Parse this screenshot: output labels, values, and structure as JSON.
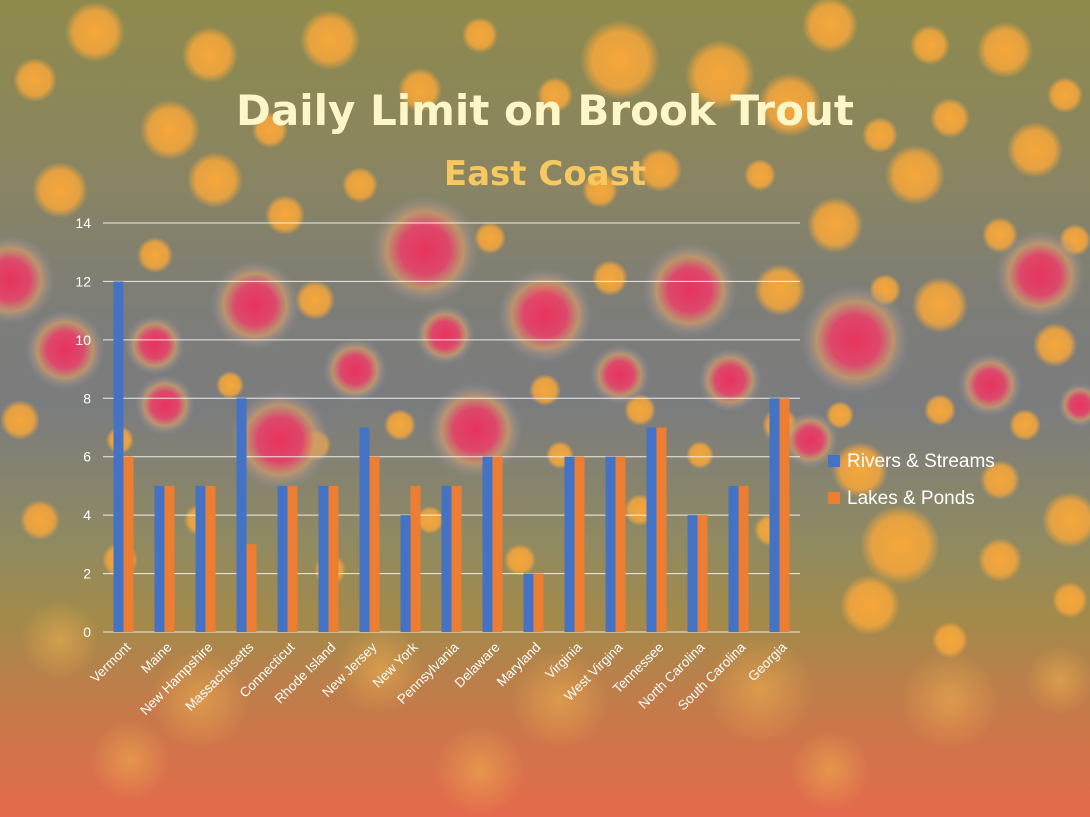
{
  "colors": {
    "rivers": "#4472c4",
    "lakes": "#ed7d31",
    "grid": "#ffffff",
    "spot_gold": "#f6a73a",
    "spot_red": "#e8335e"
  },
  "chart_data": {
    "type": "bar",
    "title": "Daily Limit on Brook Trout",
    "subtitle": "East Coast",
    "categories": [
      "Vermont",
      "Maine",
      "New Hampshire",
      "Massachusetts",
      "Connecticut",
      "Rhode Island",
      "New Jersey",
      "New York",
      "Pennsylvania",
      "Delaware",
      "Maryland",
      "Virginia",
      "West Virgina",
      "Tennessee",
      "North Carolina",
      "South Carolina",
      "Georgia"
    ],
    "series": [
      {
        "name": "Rivers & Streams",
        "values": [
          12,
          5,
          5,
          8,
          5,
          5,
          7,
          4,
          5,
          6,
          2,
          6,
          6,
          7,
          4,
          5,
          8
        ]
      },
      {
        "name": "Lakes & Ponds",
        "values": [
          6,
          5,
          5,
          3,
          5,
          5,
          6,
          5,
          5,
          6,
          2,
          6,
          6,
          7,
          4,
          5,
          8
        ]
      }
    ],
    "ylim": [
      0,
      14
    ],
    "yticks": [
      0,
      2,
      4,
      6,
      8,
      10,
      12,
      14
    ],
    "grid": true,
    "legend": "right"
  }
}
